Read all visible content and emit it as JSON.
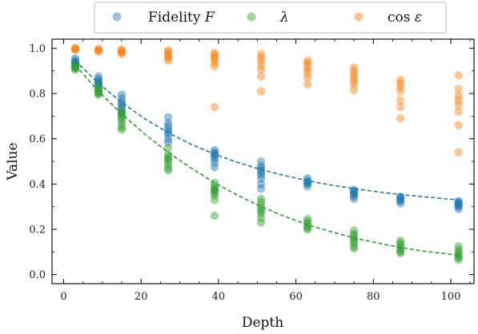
{
  "chart_data": {
    "type": "scatter",
    "xlabel": "Depth",
    "ylabel": "Value",
    "xlim": [
      -3,
      106
    ],
    "ylim": [
      -0.04,
      1.04
    ],
    "xticks": [
      0,
      20,
      40,
      60,
      80,
      100
    ],
    "yticks": [
      0.0,
      0.2,
      0.4,
      0.6,
      0.8,
      1.0
    ],
    "xtick_labels": [
      "0",
      "20",
      "40",
      "60",
      "80",
      "100"
    ],
    "ytick_labels": [
      "0.0",
      "0.2",
      "0.4",
      "0.6",
      "0.8",
      "1.0"
    ],
    "grid": false,
    "legend": {
      "placement": "top-outside",
      "entries": [
        "Fidelity F",
        "λ",
        "cos ε"
      ]
    },
    "series": [
      {
        "name": "Fidelity F",
        "label_main": "Fidelity ",
        "label_italic": "F",
        "color": "#1f77b4",
        "points": [
          [
            3,
            0.955
          ],
          [
            3,
            0.945
          ],
          [
            3,
            0.94
          ],
          [
            3,
            0.935
          ],
          [
            3,
            0.93
          ],
          [
            3,
            0.925
          ],
          [
            3,
            0.92
          ],
          [
            9,
            0.875
          ],
          [
            9,
            0.865
          ],
          [
            9,
            0.855
          ],
          [
            9,
            0.85
          ],
          [
            9,
            0.845
          ],
          [
            9,
            0.84
          ],
          [
            9,
            0.83
          ],
          [
            9,
            0.82
          ],
          [
            15,
            0.795
          ],
          [
            15,
            0.78
          ],
          [
            15,
            0.765
          ],
          [
            15,
            0.755
          ],
          [
            15,
            0.745
          ],
          [
            15,
            0.735
          ],
          [
            15,
            0.72
          ],
          [
            15,
            0.71
          ],
          [
            27,
            0.695
          ],
          [
            27,
            0.67
          ],
          [
            27,
            0.655
          ],
          [
            27,
            0.64
          ],
          [
            27,
            0.63
          ],
          [
            27,
            0.62
          ],
          [
            27,
            0.6
          ],
          [
            27,
            0.585
          ],
          [
            39,
            0.55
          ],
          [
            39,
            0.54
          ],
          [
            39,
            0.535
          ],
          [
            39,
            0.53
          ],
          [
            39,
            0.52
          ],
          [
            39,
            0.51
          ],
          [
            39,
            0.495
          ],
          [
            39,
            0.475
          ],
          [
            51,
            0.5
          ],
          [
            51,
            0.48
          ],
          [
            51,
            0.47
          ],
          [
            51,
            0.46
          ],
          [
            51,
            0.45
          ],
          [
            51,
            0.44
          ],
          [
            51,
            0.425
          ],
          [
            51,
            0.4
          ],
          [
            51,
            0.38
          ],
          [
            63,
            0.425
          ],
          [
            63,
            0.415
          ],
          [
            63,
            0.41
          ],
          [
            63,
            0.405
          ],
          [
            63,
            0.4
          ],
          [
            63,
            0.39
          ],
          [
            75,
            0.375
          ],
          [
            75,
            0.37
          ],
          [
            75,
            0.365
          ],
          [
            75,
            0.36
          ],
          [
            75,
            0.355
          ],
          [
            75,
            0.345
          ],
          [
            75,
            0.335
          ],
          [
            87,
            0.345
          ],
          [
            87,
            0.34
          ],
          [
            87,
            0.335
          ],
          [
            87,
            0.33
          ],
          [
            87,
            0.325
          ],
          [
            87,
            0.315
          ],
          [
            102,
            0.325
          ],
          [
            102,
            0.32
          ],
          [
            102,
            0.315
          ],
          [
            102,
            0.31
          ],
          [
            102,
            0.305
          ],
          [
            102,
            0.3
          ],
          [
            102,
            0.29
          ]
        ],
        "fit": [
          [
            3,
            0.945
          ],
          [
            9,
            0.845
          ],
          [
            15,
            0.76
          ],
          [
            21,
            0.688
          ],
          [
            27,
            0.627
          ],
          [
            33,
            0.575
          ],
          [
            39,
            0.532
          ],
          [
            45,
            0.495
          ],
          [
            51,
            0.464
          ],
          [
            57,
            0.438
          ],
          [
            63,
            0.415
          ],
          [
            69,
            0.396
          ],
          [
            75,
            0.38
          ],
          [
            81,
            0.366
          ],
          [
            87,
            0.354
          ],
          [
            93,
            0.344
          ],
          [
            102,
            0.33
          ]
        ]
      },
      {
        "name": "λ",
        "label_main": "",
        "label_italic": "λ",
        "color": "#2ca02c",
        "points": [
          [
            3,
            0.93
          ],
          [
            3,
            0.92
          ],
          [
            3,
            0.915
          ],
          [
            3,
            0.91
          ],
          [
            3,
            0.905
          ],
          [
            9,
            0.835
          ],
          [
            9,
            0.82
          ],
          [
            9,
            0.81
          ],
          [
            9,
            0.805
          ],
          [
            9,
            0.8
          ],
          [
            9,
            0.795
          ],
          [
            15,
            0.725
          ],
          [
            15,
            0.71
          ],
          [
            15,
            0.7
          ],
          [
            15,
            0.69
          ],
          [
            15,
            0.68
          ],
          [
            15,
            0.665
          ],
          [
            15,
            0.65
          ],
          [
            15,
            0.64
          ],
          [
            27,
            0.56
          ],
          [
            27,
            0.53
          ],
          [
            27,
            0.52
          ],
          [
            27,
            0.51
          ],
          [
            27,
            0.5
          ],
          [
            27,
            0.485
          ],
          [
            27,
            0.47
          ],
          [
            27,
            0.46
          ],
          [
            39,
            0.405
          ],
          [
            39,
            0.39
          ],
          [
            39,
            0.38
          ],
          [
            39,
            0.375
          ],
          [
            39,
            0.37
          ],
          [
            39,
            0.36
          ],
          [
            39,
            0.35
          ],
          [
            39,
            0.33
          ],
          [
            39,
            0.26
          ],
          [
            51,
            0.335
          ],
          [
            51,
            0.32
          ],
          [
            51,
            0.305
          ],
          [
            51,
            0.29
          ],
          [
            51,
            0.28
          ],
          [
            51,
            0.27
          ],
          [
            51,
            0.25
          ],
          [
            51,
            0.23
          ],
          [
            63,
            0.245
          ],
          [
            63,
            0.235
          ],
          [
            63,
            0.225
          ],
          [
            63,
            0.215
          ],
          [
            63,
            0.205
          ],
          [
            63,
            0.2
          ],
          [
            75,
            0.195
          ],
          [
            75,
            0.18
          ],
          [
            75,
            0.17
          ],
          [
            75,
            0.16
          ],
          [
            75,
            0.15
          ],
          [
            75,
            0.14
          ],
          [
            75,
            0.125
          ],
          [
            75,
            0.115
          ],
          [
            87,
            0.15
          ],
          [
            87,
            0.14
          ],
          [
            87,
            0.13
          ],
          [
            87,
            0.12
          ],
          [
            87,
            0.11
          ],
          [
            87,
            0.1
          ],
          [
            87,
            0.095
          ],
          [
            102,
            0.125
          ],
          [
            102,
            0.11
          ],
          [
            102,
            0.1
          ],
          [
            102,
            0.09
          ],
          [
            102,
            0.08
          ],
          [
            102,
            0.075
          ],
          [
            102,
            0.065
          ]
        ],
        "fit": [
          [
            3,
            0.925
          ],
          [
            9,
            0.81
          ],
          [
            15,
            0.71
          ],
          [
            21,
            0.62
          ],
          [
            27,
            0.54
          ],
          [
            33,
            0.47
          ],
          [
            39,
            0.405
          ],
          [
            45,
            0.35
          ],
          [
            51,
            0.3
          ],
          [
            57,
            0.258
          ],
          [
            63,
            0.22
          ],
          [
            69,
            0.19
          ],
          [
            75,
            0.162
          ],
          [
            81,
            0.14
          ],
          [
            87,
            0.12
          ],
          [
            93,
            0.104
          ],
          [
            102,
            0.085
          ]
        ]
      },
      {
        "name": "cos ε",
        "label_main": "cos ",
        "label_italic": "ε",
        "color": "#ff7f0e",
        "points": [
          [
            3,
            1.0
          ],
          [
            3,
            0.998
          ],
          [
            3,
            0.995
          ],
          [
            3,
            0.993
          ],
          [
            9,
            0.997
          ],
          [
            9,
            0.993
          ],
          [
            9,
            0.99
          ],
          [
            9,
            0.985
          ],
          [
            15,
            0.995
          ],
          [
            15,
            0.99
          ],
          [
            15,
            0.985
          ],
          [
            15,
            0.98
          ],
          [
            15,
            0.975
          ],
          [
            27,
            0.99
          ],
          [
            27,
            0.985
          ],
          [
            27,
            0.975
          ],
          [
            27,
            0.965
          ],
          [
            27,
            0.955
          ],
          [
            27,
            0.945
          ],
          [
            39,
            0.98
          ],
          [
            39,
            0.97
          ],
          [
            39,
            0.96
          ],
          [
            39,
            0.95
          ],
          [
            39,
            0.935
          ],
          [
            39,
            0.92
          ],
          [
            39,
            0.74
          ],
          [
            51,
            0.975
          ],
          [
            51,
            0.96
          ],
          [
            51,
            0.945
          ],
          [
            51,
            0.925
          ],
          [
            51,
            0.905
          ],
          [
            51,
            0.875
          ],
          [
            51,
            0.81
          ],
          [
            63,
            0.945
          ],
          [
            63,
            0.935
          ],
          [
            63,
            0.92
          ],
          [
            63,
            0.905
          ],
          [
            63,
            0.89
          ],
          [
            63,
            0.87
          ],
          [
            63,
            0.84
          ],
          [
            75,
            0.915
          ],
          [
            75,
            0.9
          ],
          [
            75,
            0.885
          ],
          [
            75,
            0.87
          ],
          [
            75,
            0.855
          ],
          [
            75,
            0.84
          ],
          [
            75,
            0.815
          ],
          [
            87,
            0.86
          ],
          [
            87,
            0.845
          ],
          [
            87,
            0.83
          ],
          [
            87,
            0.81
          ],
          [
            87,
            0.77
          ],
          [
            87,
            0.74
          ],
          [
            87,
            0.69
          ],
          [
            102,
            0.88
          ],
          [
            102,
            0.82
          ],
          [
            102,
            0.79
          ],
          [
            102,
            0.77
          ],
          [
            102,
            0.75
          ],
          [
            102,
            0.72
          ],
          [
            102,
            0.66
          ],
          [
            102,
            0.54
          ]
        ]
      }
    ]
  }
}
